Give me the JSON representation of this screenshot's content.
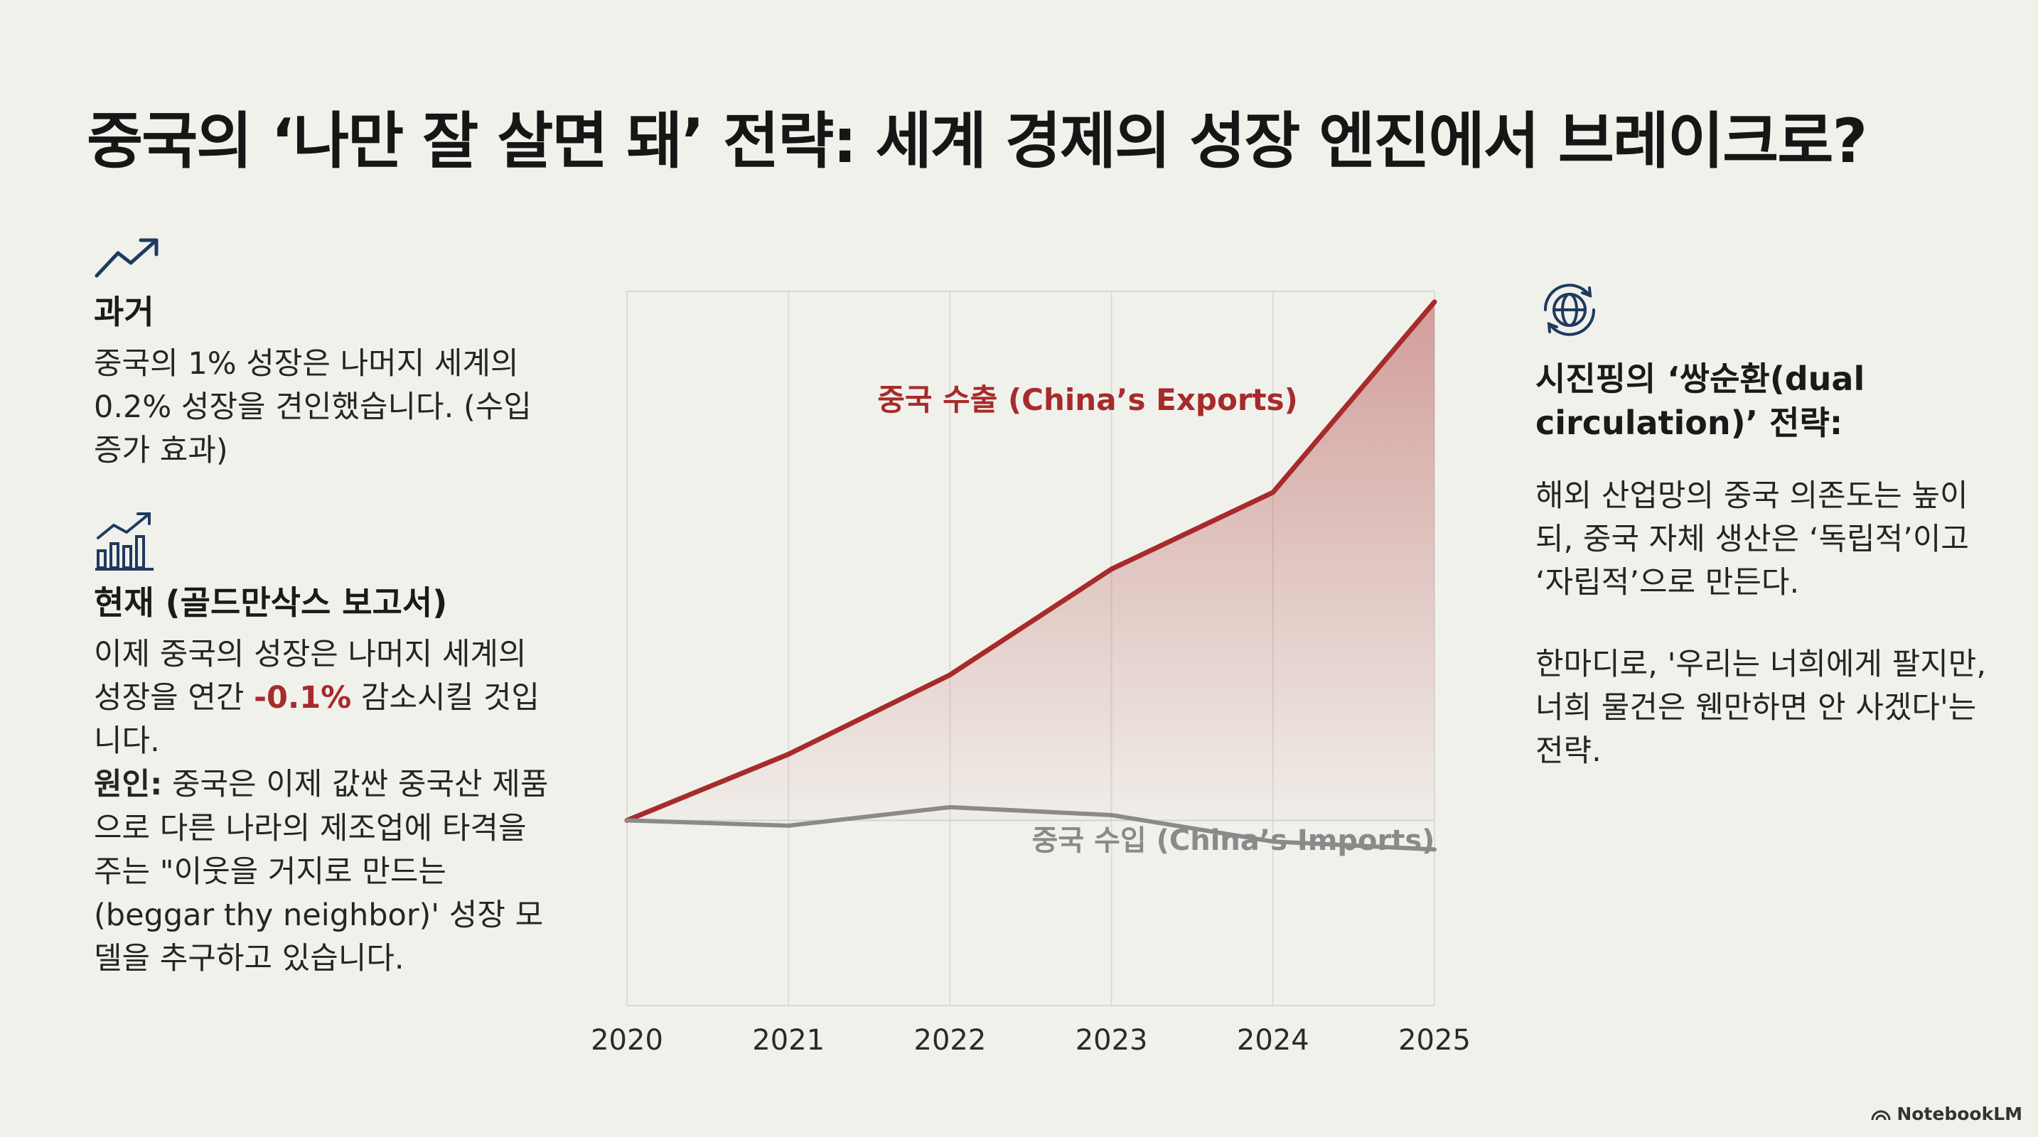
{
  "title": "중국의 ‘나만 잘 살면 돼’ 전략: 세계 경제의 성장 엔진에서 브레이크로?",
  "past": {
    "icon": "trend-up-icon",
    "heading": "과거",
    "text": "중국의 1% 성장은 나머지 세계의 0.2% 성장을 견인했습니다. (수입 증가 효과)"
  },
  "present": {
    "icon": "bar-chart-growth-icon",
    "heading": "현재 (골드만삭스 보고서)",
    "text_before": "이제 중국의 성장은 나머지 세계의 성장을 연간 ",
    "highlight": "-0.1%",
    "text_after": " 감소시킬 것입니다.",
    "cause_label": "원인:",
    "cause_text": " 중국은 이제 값싼 중국산 제품으로 다른 나라의 제조업에 타격을 주는 \"이웃을 거지로 만드는(beggar thy neighbor)' 성장 모델을 추구하고 있습니다."
  },
  "strategy": {
    "icon": "globe-cycle-icon",
    "heading": "시진핑의 ‘쌍순환(dual circulation)’ 전략:",
    "text1": "해외 산업망의 중국 의존도는 높이되, 중국 자체 생산은 ‘독립적’이고 ‘자립적’으로 만든다.",
    "text2": "한마디로, '우리는 너희에게 팔지만, 너희 물건은 웬만하면 안 사겠다'는 전략."
  },
  "chart_data": {
    "type": "area",
    "title": "",
    "xlabel": "",
    "ylabel": "",
    "categories": [
      "2020",
      "2021",
      "2022",
      "2023",
      "2024",
      "2025"
    ],
    "ylim": [
      -35,
      100
    ],
    "grid": true,
    "series": [
      {
        "name": "중국 수출 (China’s Exports)",
        "values": [
          0,
          12.5,
          27.5,
          47.5,
          62,
          98
        ],
        "color": "#a72b2b",
        "fill": true
      },
      {
        "name": "중국 수입 (China’s Imports)",
        "values": [
          0,
          -1,
          2.5,
          1,
          -4,
          -5.5
        ],
        "color": "#8a8a8a",
        "fill": false
      }
    ]
  },
  "brand": "NotebookLM",
  "colors": {
    "accent": "#a72b2b",
    "icon": "#1f3a5f",
    "background": "#f1f1ec"
  }
}
